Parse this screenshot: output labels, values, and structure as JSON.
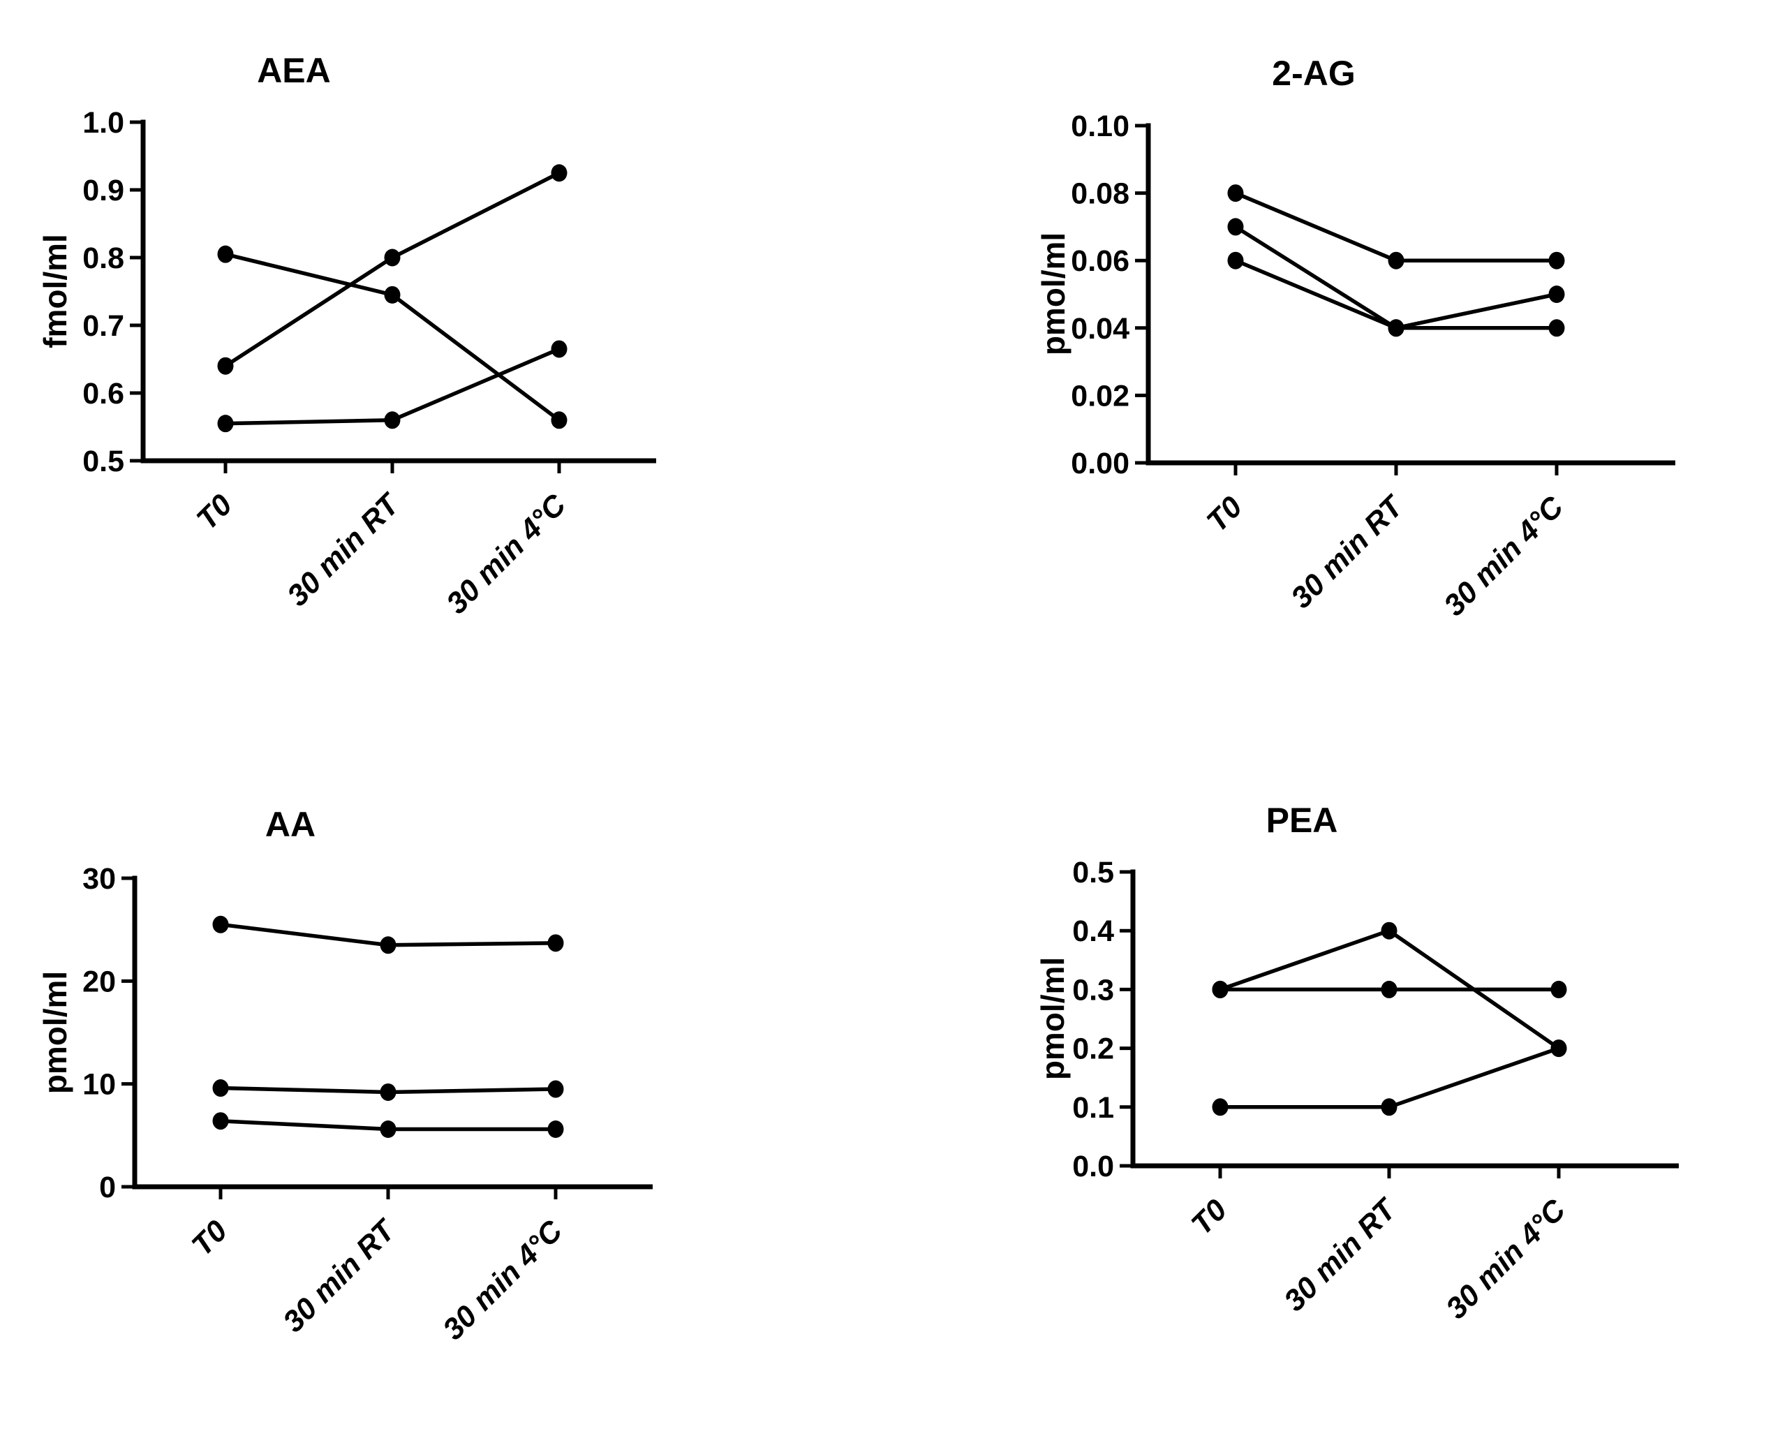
{
  "page": {
    "background": "#ffffff",
    "ink_color": "#000000"
  },
  "chart_data": [
    {
      "type": "line",
      "title": "AEA",
      "ylabel": "fmol/ml",
      "xlabel": "",
      "categories": [
        "T0",
        "30 min RT",
        "30 min 4°C"
      ],
      "ylim": [
        0.5,
        1.0
      ],
      "yticks": [
        {
          "value": 0.5,
          "label": "0.5"
        },
        {
          "value": 0.6,
          "label": "0.6"
        },
        {
          "value": 0.7,
          "label": "0.7"
        },
        {
          "value": 0.8,
          "label": "0.8"
        },
        {
          "value": 0.9,
          "label": "0.9"
        },
        {
          "value": 1.0,
          "label": "1.0"
        }
      ],
      "grid": false,
      "legend": "none",
      "marker": "filled-circle",
      "line_color": "#000000",
      "series": [
        {
          "values": [
            0.805,
            0.745,
            0.56
          ]
        },
        {
          "values": [
            0.64,
            0.8,
            0.925
          ]
        },
        {
          "values": [
            0.555,
            0.56,
            0.665
          ]
        }
      ]
    },
    {
      "type": "line",
      "title": "2-AG",
      "ylabel": "pmol/ml",
      "xlabel": "",
      "categories": [
        "T0",
        "30 min RT",
        "30 min 4°C"
      ],
      "ylim": [
        0.0,
        0.1
      ],
      "yticks": [
        {
          "value": 0.0,
          "label": "0.00"
        },
        {
          "value": 0.02,
          "label": "0.02"
        },
        {
          "value": 0.04,
          "label": "0.04"
        },
        {
          "value": 0.06,
          "label": "0.06"
        },
        {
          "value": 0.08,
          "label": "0.08"
        },
        {
          "value": 0.1,
          "label": "0.10"
        }
      ],
      "grid": false,
      "legend": "none",
      "marker": "filled-circle",
      "line_color": "#000000",
      "series": [
        {
          "values": [
            0.08,
            0.06,
            0.06
          ]
        },
        {
          "values": [
            0.07,
            0.04,
            0.05
          ]
        },
        {
          "values": [
            0.06,
            0.04,
            0.04
          ]
        }
      ]
    },
    {
      "type": "line",
      "title": "AA",
      "ylabel": "pmol/ml",
      "xlabel": "",
      "categories": [
        "T0",
        "30 min RT",
        "30 min 4°C"
      ],
      "ylim": [
        0,
        30
      ],
      "yticks": [
        {
          "value": 0,
          "label": "0"
        },
        {
          "value": 10,
          "label": "10"
        },
        {
          "value": 20,
          "label": "20"
        },
        {
          "value": 30,
          "label": "30"
        }
      ],
      "grid": false,
      "legend": "none",
      "marker": "filled-circle",
      "line_color": "#000000",
      "series": [
        {
          "values": [
            25.5,
            23.5,
            23.7
          ]
        },
        {
          "values": [
            9.6,
            9.2,
            9.5
          ]
        },
        {
          "values": [
            6.4,
            5.6,
            5.6
          ]
        }
      ]
    },
    {
      "type": "line",
      "title": "PEA",
      "ylabel": "pmol/ml",
      "xlabel": "",
      "categories": [
        "T0",
        "30 min RT",
        "30 min 4°C"
      ],
      "ylim": [
        0.0,
        0.5
      ],
      "yticks": [
        {
          "value": 0.0,
          "label": "0.0"
        },
        {
          "value": 0.1,
          "label": "0.1"
        },
        {
          "value": 0.2,
          "label": "0.2"
        },
        {
          "value": 0.3,
          "label": "0.3"
        },
        {
          "value": 0.4,
          "label": "0.4"
        },
        {
          "value": 0.5,
          "label": "0.5"
        }
      ],
      "grid": false,
      "legend": "none",
      "marker": "filled-circle",
      "line_color": "#000000",
      "series": [
        {
          "values": [
            0.3,
            0.4,
            0.2
          ]
        },
        {
          "values": [
            0.3,
            0.3,
            0.3
          ]
        },
        {
          "values": [
            0.1,
            0.1,
            0.2
          ]
        }
      ]
    }
  ]
}
